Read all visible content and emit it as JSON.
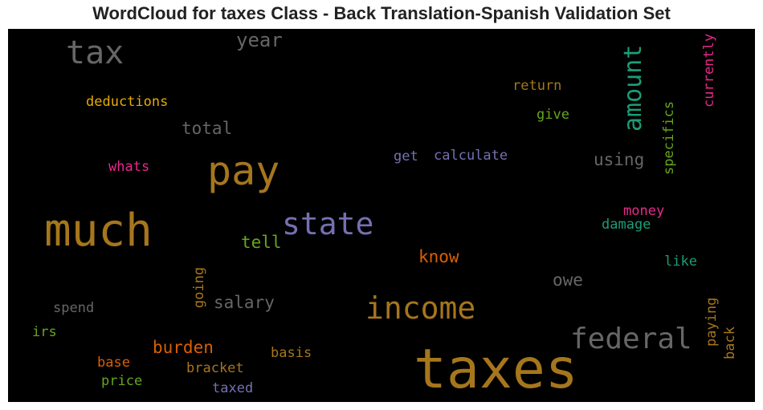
{
  "title": "WordCloud for taxes Class - Back Translation-Spanish Validation Set",
  "chart_data": {
    "type": "wordcloud",
    "title": "WordCloud for taxes Class - Back Translation-Spanish Validation Set",
    "background": "#000000",
    "words": [
      {
        "text": "taxes",
        "color": "#a6761d"
      },
      {
        "text": "much",
        "color": "#a6761d"
      },
      {
        "text": "pay",
        "color": "#a6761d"
      },
      {
        "text": "state",
        "color": "#7570b3"
      },
      {
        "text": "income",
        "color": "#a6761d"
      },
      {
        "text": "tax",
        "color": "#666666"
      },
      {
        "text": "federal",
        "color": "#666666"
      },
      {
        "text": "amount",
        "color": "#1b9e77"
      },
      {
        "text": "year",
        "color": "#666666"
      },
      {
        "text": "total",
        "color": "#666666"
      },
      {
        "text": "know",
        "color": "#d95f02"
      },
      {
        "text": "using",
        "color": "#666666"
      },
      {
        "text": "salary",
        "color": "#666666"
      },
      {
        "text": "owe",
        "color": "#666666"
      },
      {
        "text": "burden",
        "color": "#d95f02"
      },
      {
        "text": "tell",
        "color": "#66a61e"
      },
      {
        "text": "currently",
        "color": "#e7298a"
      },
      {
        "text": "specifics",
        "color": "#66a61e"
      },
      {
        "text": "deductions",
        "color": "#e6ab02"
      },
      {
        "text": "calculate",
        "color": "#7570b3"
      },
      {
        "text": "return",
        "color": "#a6761d"
      },
      {
        "text": "give",
        "color": "#66a61e"
      },
      {
        "text": "get",
        "color": "#7570b3"
      },
      {
        "text": "whats",
        "color": "#e7298a"
      },
      {
        "text": "money",
        "color": "#e7298a"
      },
      {
        "text": "damage",
        "color": "#1b9e77"
      },
      {
        "text": "like",
        "color": "#1b9e77"
      },
      {
        "text": "going",
        "color": "#a6761d"
      },
      {
        "text": "spend",
        "color": "#666666"
      },
      {
        "text": "irs",
        "color": "#66a61e"
      },
      {
        "text": "paying",
        "color": "#a6761d"
      },
      {
        "text": "back",
        "color": "#a6761d"
      },
      {
        "text": "basis",
        "color": "#a6761d"
      },
      {
        "text": "base",
        "color": "#d95f02"
      },
      {
        "text": "bracket",
        "color": "#a6761d"
      },
      {
        "text": "price",
        "color": "#66a61e"
      },
      {
        "text": "taxed",
        "color": "#7570b3"
      }
    ]
  }
}
